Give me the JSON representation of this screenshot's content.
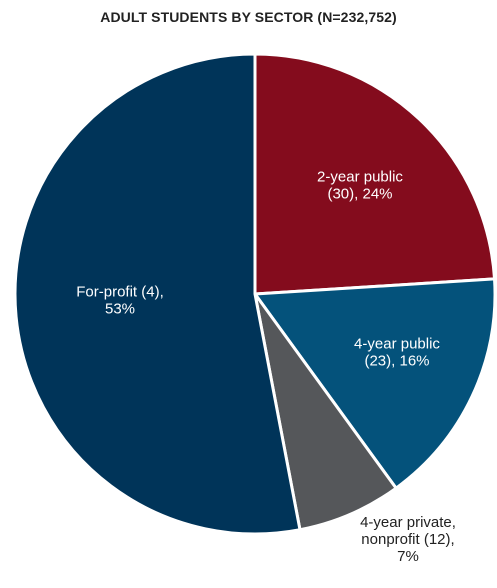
{
  "chart_data": {
    "type": "pie",
    "title": "ADULT STUDENTS BY SECTOR (N=232,752)",
    "start": "top",
    "direction": "clockwise",
    "slices": [
      {
        "label_lines": [
          "2-year public",
          "(30), 24%"
        ],
        "value": 24,
        "color": "#840C1D",
        "label_color": "#ffffff",
        "label_position": "inside"
      },
      {
        "label_lines": [
          "4-year public",
          "(23), 16%"
        ],
        "value": 16,
        "color": "#04527B",
        "label_color": "#ffffff",
        "label_position": "inside"
      },
      {
        "label_lines": [
          "4-year private,",
          "nonprofit (12),",
          "7%"
        ],
        "value": 7,
        "color": "#55575A",
        "label_color": "#222222",
        "label_position": "outside"
      },
      {
        "label_lines": [
          "For-profit (4),",
          "53%"
        ],
        "value": 53,
        "color": "#003459",
        "label_color": "#ffffff",
        "label_position": "inside"
      }
    ]
  }
}
